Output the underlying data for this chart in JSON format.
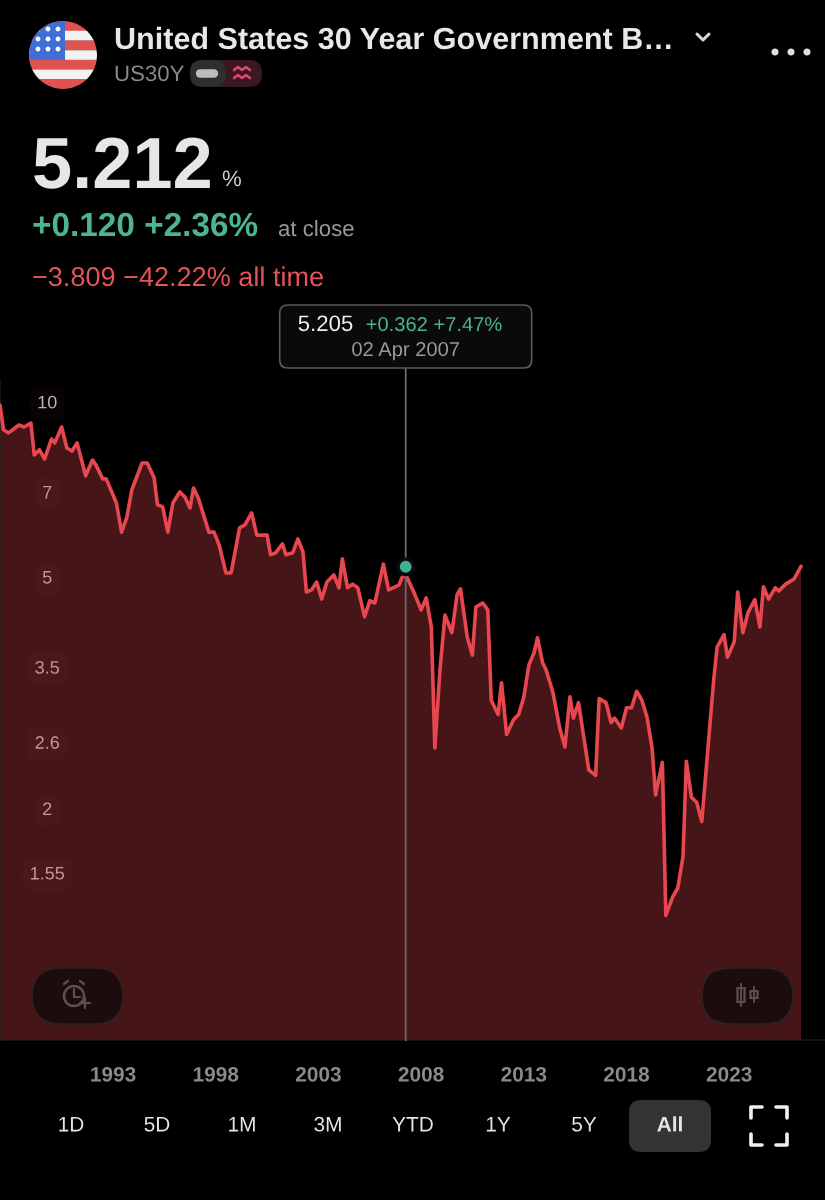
{
  "chart_data": {
    "type": "area",
    "title": "United States 30 Year Government B…",
    "subtitle": "US30Y",
    "annotations": [
      "5.212",
      "%",
      "+0.120 +2.36%",
      "at close",
      "−3.809 −42.22% all time",
      "5.205",
      "+0.362 +7.47%",
      "02 Apr 2007",
      "1D",
      "5D",
      "1M",
      "3M",
      "YTD",
      "1Y",
      "5Y",
      "All"
    ],
    "x": [
      "1987-07",
      "1987-09",
      "1987-12",
      "1988-06",
      "1988-09",
      "1989-01",
      "1989-03",
      "1989-06",
      "1989-09",
      "1990-01",
      "1990-03",
      "1990-07",
      "1990-10",
      "1991-01",
      "1991-04",
      "1991-09",
      "1992-01",
      "1992-03",
      "1992-07",
      "1992-09",
      "1993-03",
      "1993-06",
      "1993-09",
      "1993-12",
      "1994-06",
      "1994-09",
      "1995-01",
      "1995-03",
      "1995-06",
      "1995-09",
      "1995-12",
      "1996-04",
      "1996-07",
      "1996-10",
      "1996-12",
      "1997-03",
      "1997-09",
      "1997-12",
      "1998-03",
      "1998-07",
      "1998-10",
      "1999-03",
      "1999-06",
      "1999-10",
      "2000-01",
      "2000-07",
      "2000-09",
      "2000-12",
      "2001-04",
      "2001-06",
      "2001-10",
      "2002-01",
      "2002-04",
      "2002-06",
      "2002-09",
      "2002-12",
      "2003-03",
      "2003-06",
      "2003-10",
      "2004-01",
      "2004-03",
      "2004-06",
      "2004-09",
      "2004-12",
      "2005-04",
      "2005-07",
      "2005-10",
      "2006-03",
      "2006-06",
      "2006-12",
      "2007-02",
      "2007-04-02",
      "2007-05",
      "2007-09",
      "2008-01",
      "2008-04",
      "2008-07",
      "2008-09",
      "2008-12",
      "2009-03",
      "2009-07",
      "2009-10",
      "2009-12",
      "2010-04",
      "2010-07",
      "2010-09",
      "2011-01",
      "2011-04",
      "2011-06",
      "2011-10",
      "2011-12",
      "2012-03",
      "2012-07",
      "2012-10",
      "2013-01",
      "2013-04",
      "2013-07",
      "2013-09",
      "2013-12",
      "2014-02",
      "2014-06",
      "2014-10",
      "2015-01",
      "2015-04",
      "2015-06",
      "2015-09",
      "2016-03",
      "2016-07",
      "2016-09",
      "2017-01",
      "2017-04",
      "2017-06",
      "2017-10",
      "2018-01",
      "2018-04",
      "2018-07",
      "2018-10",
      "2019-01",
      "2019-04",
      "2019-06",
      "2019-10",
      "2019-12",
      "2020-04",
      "2020-07",
      "2020-10",
      "2020-12",
      "2021-03",
      "2021-06",
      "2021-09",
      "2022-04",
      "2022-06",
      "2022-10",
      "2022-12",
      "2023-04",
      "2023-06",
      "2023-09",
      "2023-12",
      "2024-04",
      "2024-07",
      "2024-09",
      "2024-12",
      "2025-04",
      "2025-06",
      "2025-10",
      "2026-03",
      "2026-07"
    ],
    "series": [
      {
        "color": "#e8474f",
        "values": [
          9.87,
          8.95,
          8.84,
          9.12,
          9.05,
          9.19,
          8.1,
          8.27,
          7.97,
          8.63,
          8.5,
          9.05,
          8.33,
          8.23,
          8.5,
          7.46,
          7.94,
          7.79,
          7.37,
          7.37,
          6.7,
          5.97,
          6.32,
          7.06,
          7.85,
          7.85,
          7.4,
          6.65,
          6.6,
          5.97,
          6.7,
          7.0,
          6.86,
          6.57,
          7.11,
          6.81,
          5.97,
          5.97,
          5.68,
          5.08,
          5.08,
          6.07,
          6.14,
          6.44,
          5.9,
          5.9,
          5.46,
          5.5,
          5.7,
          5.46,
          5.5,
          5.81,
          5.52,
          4.71,
          4.75,
          4.9,
          4.58,
          4.9,
          5.04,
          4.79,
          5.37,
          4.79,
          4.86,
          4.79,
          4.27,
          4.55,
          4.51,
          5.26,
          4.75,
          4.84,
          5.0,
          5.02,
          4.98,
          4.69,
          4.39,
          4.6,
          4.1,
          2.54,
          3.46,
          4.3,
          4.01,
          4.66,
          4.77,
          3.94,
          3.67,
          4.44,
          4.51,
          4.39,
          3.07,
          2.9,
          3.29,
          2.68,
          2.84,
          2.9,
          3.11,
          3.53,
          3.7,
          3.93,
          3.56,
          3.46,
          3.17,
          2.75,
          2.55,
          3.11,
          2.86,
          3.04,
          2.33,
          2.28,
          3.09,
          3.04,
          2.81,
          2.86,
          2.75,
          2.98,
          2.98,
          3.18,
          3.07,
          2.87,
          2.54,
          2.11,
          2.4,
          1.31,
          1.41,
          1.46,
          1.65,
          2.41,
          2.09,
          2.05,
          1.9,
          3.33,
          3.79,
          3.98,
          3.64,
          3.87,
          4.71,
          4.01,
          4.34,
          4.57,
          4.1,
          4.81,
          4.58,
          4.79,
          4.73,
          4.86,
          4.96,
          5.212
        ]
      },
      {
        "type": "scatter",
        "color": "#3fae94",
        "x": [
          "2007-04-02"
        ],
        "values": [
          5.205
        ]
      }
    ],
    "log": "y",
    "xlim": [
      "1987-07-01",
      "2027-09-01"
    ],
    "ylim": [
      0.8,
      10.9
    ],
    "xticks": [
      {
        "value": "1993-01-01",
        "label": "1993"
      },
      {
        "value": "1998-01-01",
        "label": "1998"
      },
      {
        "value": "2003-01-01",
        "label": "2003"
      },
      {
        "value": "2008-01-01",
        "label": "2008"
      },
      {
        "value": "2013-01-01",
        "label": "2013"
      },
      {
        "value": "2018-01-01",
        "label": "2018"
      },
      {
        "value": "2023-01-01",
        "label": "2023"
      }
    ],
    "yticks": [
      1.55,
      2,
      2.6,
      3.5,
      5,
      7,
      10
    ],
    "ref_lines": [
      {
        "axis": "x",
        "value": "2007-04-02",
        "color": "#6b6b6b"
      }
    ]
  }
}
